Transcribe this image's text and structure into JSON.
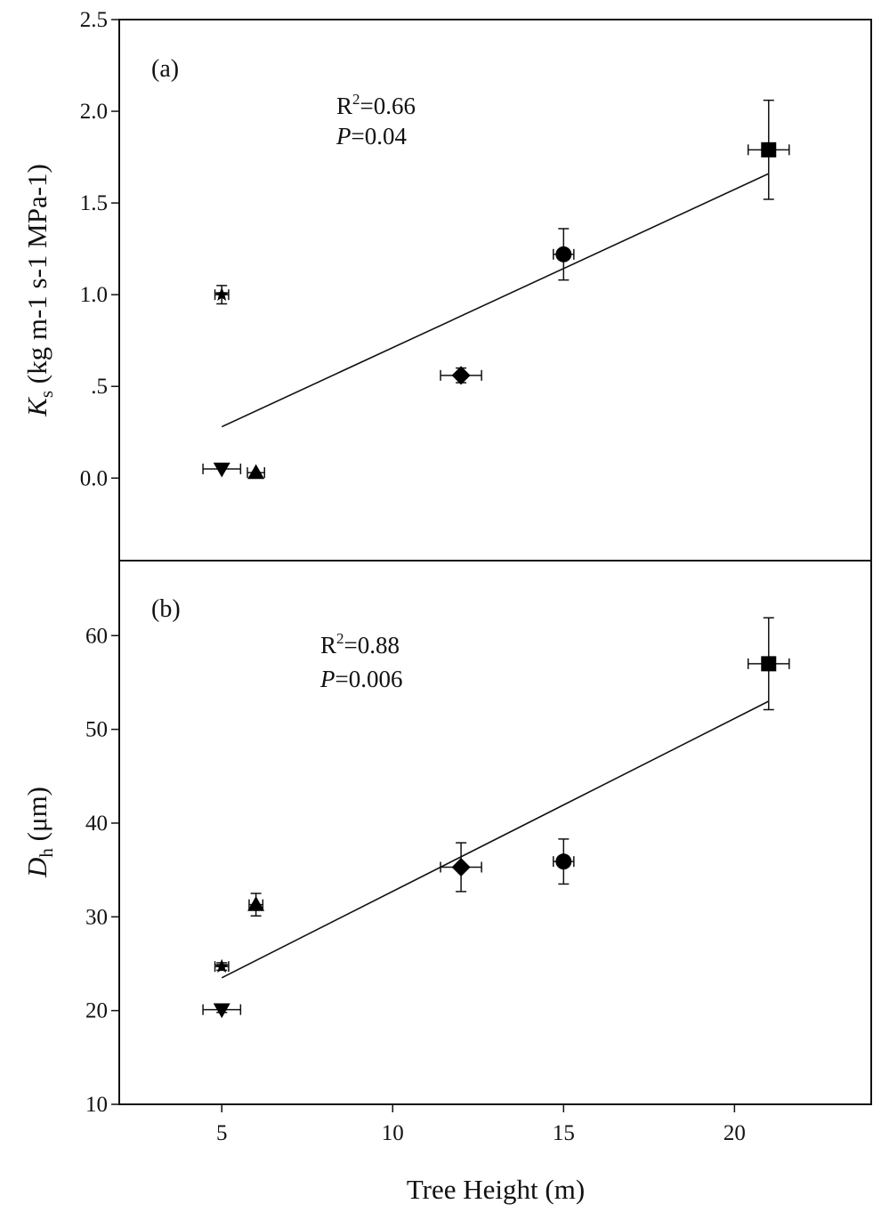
{
  "chart_data": {
    "type": "scatter",
    "x_axis": {
      "label": "Tree Height (m)",
      "range": [
        2,
        24
      ],
      "ticks": [
        5,
        10,
        15,
        20
      ],
      "tick_labels": [
        "5",
        "10",
        "15",
        "20"
      ]
    },
    "panels": [
      {
        "id": "a",
        "tag": "(a)",
        "ylabel_main": "K",
        "ylabel_sub": "s",
        "ylabel_units": " (kg m-1 s-1 MPa-1)",
        "ylim": [
          -0.45,
          2.5
        ],
        "ticks": [
          0.0,
          0.5,
          1.0,
          1.5,
          2.0,
          2.5
        ],
        "tick_labels": [
          "0.0",
          ".5",
          "1.0",
          "1.5",
          "2.0",
          "2.5"
        ],
        "r2_label": "R",
        "r2_sup": "2",
        "r2_value": "=0.66",
        "p_label": "P",
        "p_value": "=0.04",
        "fit": {
          "x0": 5,
          "y0": 0.28,
          "x1": 21,
          "y1": 1.66
        },
        "points": [
          {
            "marker": "square",
            "x": 21,
            "y": 1.79,
            "xerr": 0.6,
            "yerr": 0.27
          },
          {
            "marker": "circle",
            "x": 15,
            "y": 1.22,
            "xerr": 0.3,
            "yerr": 0.14
          },
          {
            "marker": "diamond",
            "x": 12,
            "y": 0.56,
            "xerr": 0.6,
            "yerr": 0.04
          },
          {
            "marker": "star",
            "x": 5,
            "y": 1.0,
            "xerr": 0.2,
            "yerr": 0.05
          },
          {
            "marker": "triangle-down",
            "x": 5,
            "y": 0.05,
            "xerr": 0.55,
            "yerr": 0.0
          },
          {
            "marker": "triangle-up",
            "x": 6,
            "y": 0.03,
            "xerr": 0.25,
            "yerr": 0.0
          }
        ]
      },
      {
        "id": "b",
        "tag": "(b)",
        "ylabel_main": "D",
        "ylabel_sub": "h",
        "ylabel_units": " (μm)",
        "ylim": [
          10,
          68
        ],
        "ticks": [
          10,
          20,
          30,
          40,
          50,
          60
        ],
        "tick_labels": [
          "10",
          "20",
          "30",
          "40",
          "50",
          "60"
        ],
        "r2_label": "R",
        "r2_sup": "2",
        "r2_value": "=0.88",
        "p_label": "P",
        "p_value": "=0.006",
        "fit": {
          "x0": 5,
          "y0": 23.5,
          "x1": 21,
          "y1": 53
        },
        "points": [
          {
            "marker": "square",
            "x": 21,
            "y": 57,
            "xerr": 0.6,
            "yerr": 4.9
          },
          {
            "marker": "circle",
            "x": 15,
            "y": 35.9,
            "xerr": 0.3,
            "yerr": 2.4
          },
          {
            "marker": "diamond",
            "x": 12,
            "y": 35.3,
            "xerr": 0.6,
            "yerr": 2.6
          },
          {
            "marker": "star",
            "x": 5,
            "y": 24.7,
            "xerr": 0.2,
            "yerr": 0.4
          },
          {
            "marker": "triangle-down",
            "x": 5,
            "y": 20.1,
            "xerr": 0.55,
            "yerr": 0.3
          },
          {
            "marker": "triangle-up",
            "x": 6,
            "y": 31.3,
            "xerr": 0.2,
            "yerr": 1.2
          }
        ]
      }
    ]
  }
}
